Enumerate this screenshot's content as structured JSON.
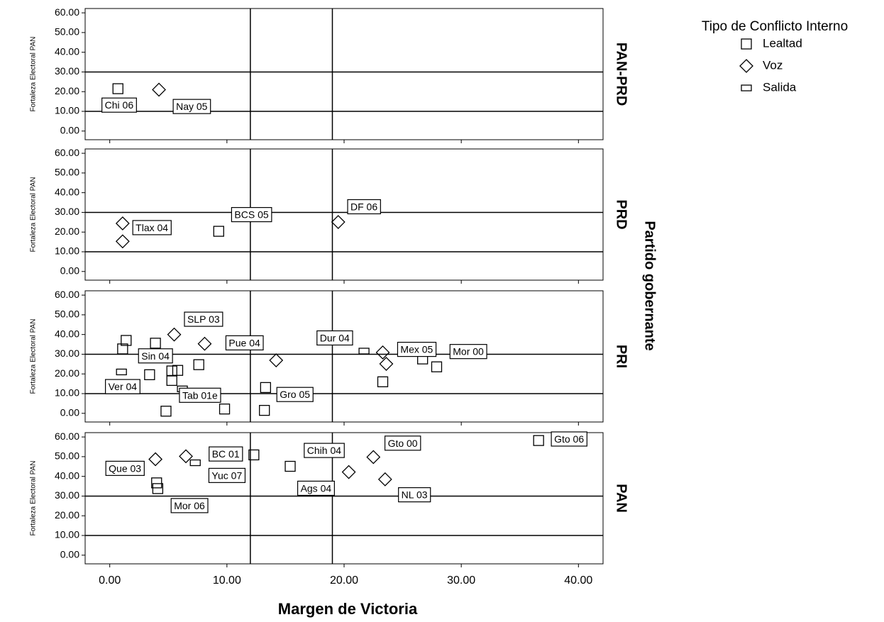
{
  "chart_data": {
    "type": "scatter",
    "x_label": "Margen de Victoria",
    "y_label": "Fortaleza Electoral PAN",
    "facet_title": "Partido gobernante",
    "legend_title": "Tipo de Conflicto Interno",
    "xlim": [
      -2.1,
      42.1
    ],
    "ylim": [
      -4.4,
      62.2
    ],
    "xticks": [
      {
        "value": 0,
        "label": "0.00"
      },
      {
        "value": 10,
        "label": "10.00"
      },
      {
        "value": 20,
        "label": "20.00"
      },
      {
        "value": 30,
        "label": "30.00"
      },
      {
        "value": 40,
        "label": "40.00"
      }
    ],
    "yticks": [
      {
        "value": 0,
        "label": "0.00"
      },
      {
        "value": 10,
        "label": "10.00"
      },
      {
        "value": 20,
        "label": "20.00"
      },
      {
        "value": 30,
        "label": "30.00"
      },
      {
        "value": 40,
        "label": "40.00"
      },
      {
        "value": 50,
        "label": "50.00"
      },
      {
        "value": 60,
        "label": "60.00"
      }
    ],
    "hlines": [
      30,
      10
    ],
    "vlines": [
      12,
      19
    ],
    "color": "#000000",
    "series": [
      {
        "name": "Lealtad",
        "marker": "square"
      },
      {
        "name": "Voz",
        "marker": "diamond"
      },
      {
        "name": "Salida",
        "marker": "flat"
      }
    ],
    "facets": [
      {
        "name": "PAN-PRD",
        "series": [
          {
            "x": [
              0.7
            ],
            "y": [
              21.5
            ]
          },
          {
            "x": [
              4.2
            ],
            "y": [
              21
            ]
          },
          {
            "x": [],
            "y": []
          }
        ],
        "annotations": [
          {
            "text": "Chi 06",
            "x": 0.8,
            "y": 12.7
          },
          {
            "text": "Nay 05",
            "x": 7,
            "y": 12
          }
        ]
      },
      {
        "name": "PRD",
        "series": [
          {
            "x": [
              9.3
            ],
            "y": [
              20.4
            ]
          },
          {
            "x": [
              1.1,
              1.1,
              19.5
            ],
            "y": [
              24.4,
              15.3,
              25.1
            ]
          },
          {
            "x": [],
            "y": []
          }
        ],
        "annotations": [
          {
            "text": "Tlax 04",
            "x": 3.6,
            "y": 21.8
          },
          {
            "text": "BCS 05",
            "x": 12.1,
            "y": 28.4
          },
          {
            "text": "DF 06",
            "x": 21.7,
            "y": 32.4
          }
        ]
      },
      {
        "name": "PRI",
        "series": [
          {
            "x": [
              1.4,
              1.1,
              3.9,
              3.4,
              5.3,
              5.8,
              5.3,
              7.6,
              4.8,
              9.8,
              13.3,
              13.2,
              23.3,
              26.7,
              27.9
            ],
            "y": [
              37,
              32.7,
              35.6,
              19.6,
              21.5,
              21.8,
              16.7,
              24.7,
              1.1,
              2.2,
              13.1,
              1.5,
              16,
              27.6,
              23.6
            ]
          },
          {
            "x": [
              5.5,
              8.1,
              14.2,
              23.3,
              23.6
            ],
            "y": [
              40,
              35.3,
              26.9,
              30.9,
              25.1
            ]
          },
          {
            "x": [
              1.0,
              6.2,
              21.7
            ],
            "y": [
              21,
              12.4,
              31.6
            ]
          }
        ],
        "annotations": [
          {
            "text": "SLP 03",
            "x": 8,
            "y": 47.3
          },
          {
            "text": "Pue 04",
            "x": 11.5,
            "y": 35.3
          },
          {
            "text": "Sin 04",
            "x": 3.9,
            "y": 28.7
          },
          {
            "text": "Ver 04",
            "x": 1.1,
            "y": 13.1
          },
          {
            "text": "Tab 01e",
            "x": 7.7,
            "y": 8.7
          },
          {
            "text": "Gro 05",
            "x": 15.8,
            "y": 9.1
          },
          {
            "text": "Dur 04",
            "x": 19.2,
            "y": 37.8
          },
          {
            "text": "Mex 05",
            "x": 26.2,
            "y": 32
          },
          {
            "text": "Mor 00",
            "x": 30.6,
            "y": 30.9
          }
        ]
      },
      {
        "name": "PAN",
        "series": [
          {
            "x": [
              12.3,
              15.4,
              4,
              4.1,
              36.6
            ],
            "y": [
              50.9,
              45.1,
              36.7,
              33.8,
              58.2
            ]
          },
          {
            "x": [
              3.9,
              6.5,
              20.4,
              22.5,
              23.5
            ],
            "y": [
              48.7,
              50.2,
              42.2,
              49.8,
              38.5
            ]
          },
          {
            "x": [
              7.3
            ],
            "y": [
              46.9
            ]
          }
        ],
        "annotations": [
          {
            "text": "BC 01",
            "x": 9.9,
            "y": 50.9
          },
          {
            "text": "Que 03",
            "x": 1.3,
            "y": 43.6
          },
          {
            "text": "Yuc 07",
            "x": 10,
            "y": 40
          },
          {
            "text": "Chih 04",
            "x": 18.3,
            "y": 52.7
          },
          {
            "text": "Gto 00",
            "x": 25,
            "y": 56.4
          },
          {
            "text": "Gto 06",
            "x": 39.2,
            "y": 58.5
          },
          {
            "text": "Ags 04",
            "x": 17.6,
            "y": 33.5
          },
          {
            "text": "NL 03",
            "x": 26,
            "y": 30.2
          },
          {
            "text": "Mor 06",
            "x": 6.8,
            "y": 24.7
          }
        ]
      }
    ]
  }
}
